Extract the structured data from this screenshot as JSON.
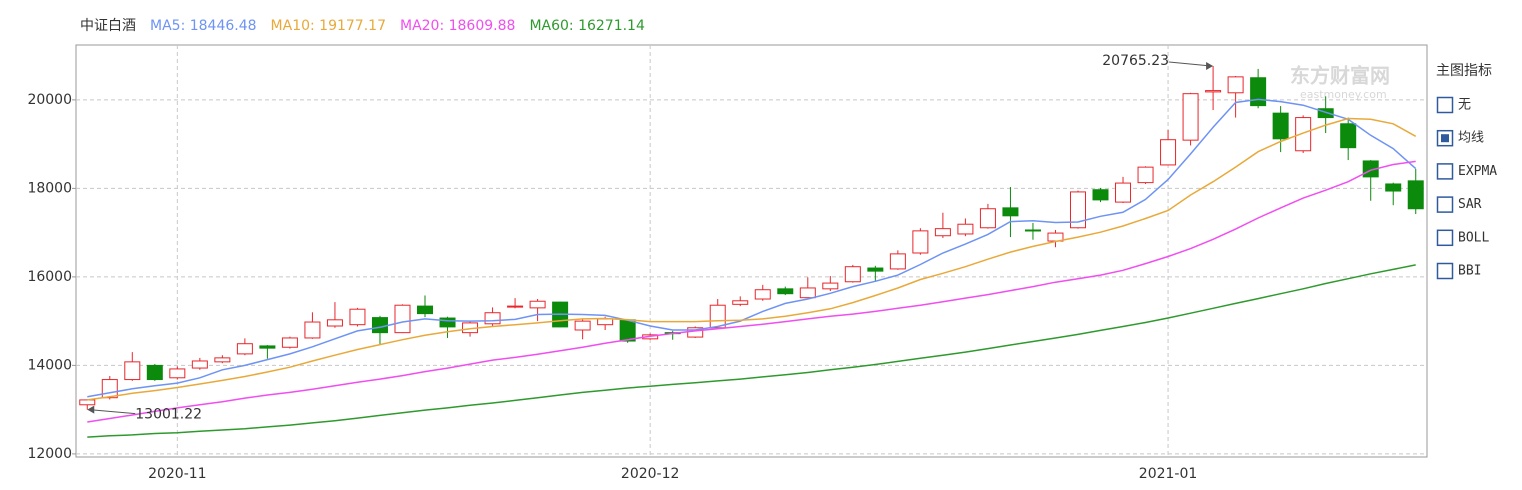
{
  "chart_data": {
    "type": "candlestick",
    "title": "中证白酒",
    "categories": [
      null,
      null,
      null,
      null,
      "2020-11",
      null,
      null,
      null,
      null,
      null,
      null,
      null,
      null,
      null,
      null,
      null,
      null,
      null,
      null,
      null,
      null,
      null,
      null,
      null,
      null,
      "2020-12",
      null,
      null,
      null,
      null,
      null,
      null,
      null,
      null,
      null,
      null,
      null,
      null,
      null,
      null,
      null,
      null,
      null,
      null,
      null,
      null,
      null,
      null,
      "2021-01",
      null,
      null,
      null,
      null,
      null,
      null,
      null,
      null,
      null,
      null,
      null
    ],
    "open": [
      13110,
      13270,
      13680,
      14000,
      13720,
      13940,
      14080,
      14260,
      14440,
      14410,
      14620,
      14890,
      14920,
      15080,
      14740,
      15340,
      15070,
      14740,
      14940,
      15320,
      15300,
      15430,
      14800,
      14920,
      15030,
      14600,
      14740,
      14640,
      14850,
      15380,
      15500,
      15730,
      15530,
      15730,
      15890,
      16200,
      16180,
      16540,
      16930,
      16970,
      17110,
      17560,
      17060,
      16810,
      17110,
      17970,
      17690,
      18130,
      18530,
      19090,
      20180,
      20160,
      20500,
      19700,
      18850,
      19800,
      19460,
      18620,
      18100,
      18170
    ],
    "high": [
      13230,
      13760,
      14300,
      14030,
      13980,
      14170,
      14230,
      14610,
      14460,
      14650,
      15200,
      15430,
      15300,
      15120,
      15380,
      15580,
      15100,
      15010,
      15310,
      15520,
      15500,
      15440,
      15050,
      15100,
      15050,
      14720,
      14780,
      14880,
      15500,
      15560,
      15820,
      15780,
      15990,
      16020,
      16270,
      16250,
      16600,
      17100,
      17450,
      17320,
      17650,
      18030,
      17220,
      17060,
      17950,
      18010,
      18260,
      18500,
      19320,
      20160,
      20765.23,
      20540,
      20700,
      19860,
      19650,
      20080,
      19600,
      18640,
      18130,
      18440
    ],
    "low": [
      13001.22,
      13230,
      13650,
      13650,
      13680,
      13900,
      14050,
      14230,
      14150,
      14380,
      14600,
      14850,
      14880,
      14460,
      14730,
      15090,
      14620,
      14650,
      14890,
      15290,
      15000,
      14860,
      14590,
      14800,
      14510,
      14580,
      14580,
      14620,
      14820,
      15340,
      15460,
      15590,
      15520,
      15680,
      15870,
      15890,
      16160,
      16500,
      16880,
      16920,
      17090,
      16900,
      16840,
      16670,
      17090,
      17690,
      17670,
      18100,
      18520,
      18970,
      19770,
      19600,
      19810,
      18820,
      18800,
      19250,
      18640,
      17720,
      17620,
      17420
    ],
    "close": [
      13220,
      13680,
      14080,
      13680,
      13920,
      14100,
      14170,
      14490,
      14390,
      14620,
      14980,
      15030,
      15270,
      14740,
      15360,
      15170,
      14870,
      14960,
      15190,
      15340,
      15450,
      14870,
      15000,
      15050,
      14550,
      14690,
      14720,
      14850,
      15360,
      15460,
      15710,
      15620,
      15750,
      15860,
      16230,
      16130,
      16520,
      17040,
      17090,
      17190,
      17540,
      17380,
      17040,
      16990,
      17920,
      17740,
      18120,
      18480,
      19100,
      20140,
      20210,
      20520,
      19870,
      19120,
      19600,
      19600,
      18920,
      18260,
      17940,
      17540
    ],
    "up_color": "#e8262b",
    "down_color": "#0b8a0b",
    "series": [
      {
        "name": "MA5: 18446.48",
        "color": "#6e93f5",
        "values": [
          13290,
          13380,
          13470,
          13540,
          13600,
          13720,
          13900,
          14000,
          14130,
          14260,
          14420,
          14600,
          14780,
          14860,
          14980,
          15050,
          15010,
          15000,
          15010,
          15040,
          15150,
          15160,
          15150,
          15130,
          15020,
          14890,
          14800,
          14800,
          14880,
          15000,
          15220,
          15400,
          15500,
          15630,
          15780,
          15900,
          16040,
          16280,
          16540,
          16740,
          16960,
          17250,
          17270,
          17230,
          17240,
          17370,
          17460,
          17750,
          18200,
          18780,
          19380,
          19940,
          20010,
          19960,
          19880,
          19720,
          19560,
          19200,
          18900,
          18446.48
        ]
      },
      {
        "name": "MA10: 19177.17",
        "color": "#e9a93a",
        "values": [
          13220,
          13290,
          13370,
          13430,
          13500,
          13580,
          13660,
          13750,
          13850,
          13960,
          14100,
          14230,
          14360,
          14470,
          14580,
          14680,
          14760,
          14830,
          14880,
          14920,
          14960,
          15010,
          15050,
          15060,
          15030,
          14990,
          14990,
          14990,
          15010,
          15020,
          15050,
          15110,
          15190,
          15280,
          15420,
          15580,
          15750,
          15940,
          16080,
          16230,
          16400,
          16560,
          16690,
          16800,
          16900,
          17010,
          17150,
          17320,
          17500,
          17850,
          18150,
          18480,
          18830,
          19060,
          19250,
          19430,
          19580,
          19560,
          19460,
          19177.17
        ]
      },
      {
        "name": "MA20: 18609.88",
        "color": "#f04ef0",
        "values": [
          12720,
          12800,
          12880,
          12960,
          13040,
          13110,
          13180,
          13260,
          13330,
          13390,
          13460,
          13540,
          13620,
          13690,
          13770,
          13860,
          13940,
          14030,
          14120,
          14180,
          14250,
          14330,
          14410,
          14500,
          14580,
          14660,
          14720,
          14780,
          14830,
          14880,
          14930,
          14990,
          15050,
          15110,
          15160,
          15220,
          15290,
          15360,
          15440,
          15520,
          15600,
          15690,
          15780,
          15880,
          15960,
          16040,
          16150,
          16300,
          16460,
          16640,
          16850,
          17080,
          17330,
          17560,
          17780,
          17960,
          18150,
          18410,
          18540,
          18609.88
        ]
      },
      {
        "name": "MA60: 16271.14",
        "color": "#2e9a2e",
        "values": [
          12380,
          12410,
          12430,
          12460,
          12480,
          12510,
          12540,
          12570,
          12610,
          12650,
          12700,
          12750,
          12810,
          12870,
          12930,
          12990,
          13040,
          13100,
          13150,
          13210,
          13270,
          13330,
          13390,
          13440,
          13490,
          13530,
          13570,
          13610,
          13650,
          13690,
          13740,
          13790,
          13840,
          13900,
          13960,
          14020,
          14090,
          14160,
          14230,
          14300,
          14380,
          14460,
          14540,
          14620,
          14700,
          14790,
          14880,
          14970,
          15070,
          15180,
          15290,
          15400,
          15510,
          15620,
          15730,
          15850,
          15960,
          16070,
          16170,
          16271.14
        ]
      }
    ],
    "ylim": [
      11930,
      21240
    ],
    "yticks": [
      12000,
      14000,
      16000,
      18000,
      20000
    ],
    "grid": true
  },
  "watermark": {
    "brand": "东方财富网",
    "site": "eastmoney.com"
  },
  "indicator_panel": {
    "title": "主图指标",
    "options": [
      "无",
      "均线",
      "EXPMA",
      "SAR",
      "BOLL",
      "BBI"
    ],
    "selected": 1
  }
}
